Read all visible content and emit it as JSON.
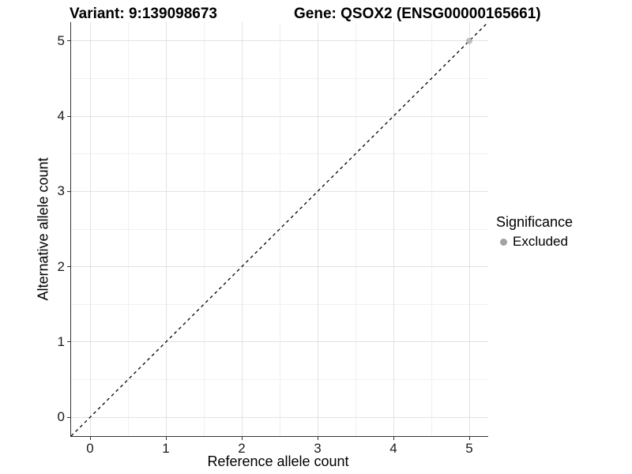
{
  "legend": {
    "title": "Significance",
    "items": [
      {
        "label": "Excluded",
        "color": "#a3a3a3"
      }
    ]
  },
  "colors": {
    "axis_line": "#343434",
    "tick_text": "#1a1a1a",
    "background": "#ffffff"
  },
  "chart_data": {
    "type": "scatter",
    "title_left": "Variant: 9:139098673",
    "title_right": "Gene: QSOX2 (ENSG00000165661)",
    "xlabel": "Reference allele count",
    "ylabel": "Alternative allele count",
    "xlim": [
      -0.25,
      5.25
    ],
    "ylim": [
      -0.25,
      5.25
    ],
    "x_ticks": [
      0,
      1,
      2,
      3,
      4,
      5
    ],
    "y_ticks": [
      0,
      1,
      2,
      3,
      4,
      5
    ],
    "grid": {
      "major": [
        0,
        1,
        2,
        3,
        4,
        5
      ],
      "minor": [
        0.5,
        1.5,
        2.5,
        3.5,
        4.5
      ],
      "major_color": "#e2e2e2",
      "minor_color": "#f0f0f0"
    },
    "series": [
      {
        "name": "Excluded",
        "color": "#b4b4b4",
        "opacity": 0.8,
        "point_radius": 4,
        "points": [
          [
            5,
            5
          ]
        ]
      }
    ],
    "reference_line": {
      "style": "dashed",
      "color": "#000000",
      "dash": [
        4,
        4
      ],
      "width": 1.3,
      "from": [
        -0.25,
        -0.25
      ],
      "to": [
        5.25,
        5.25
      ]
    },
    "legend_title": "Significance",
    "legend_position": "right"
  }
}
